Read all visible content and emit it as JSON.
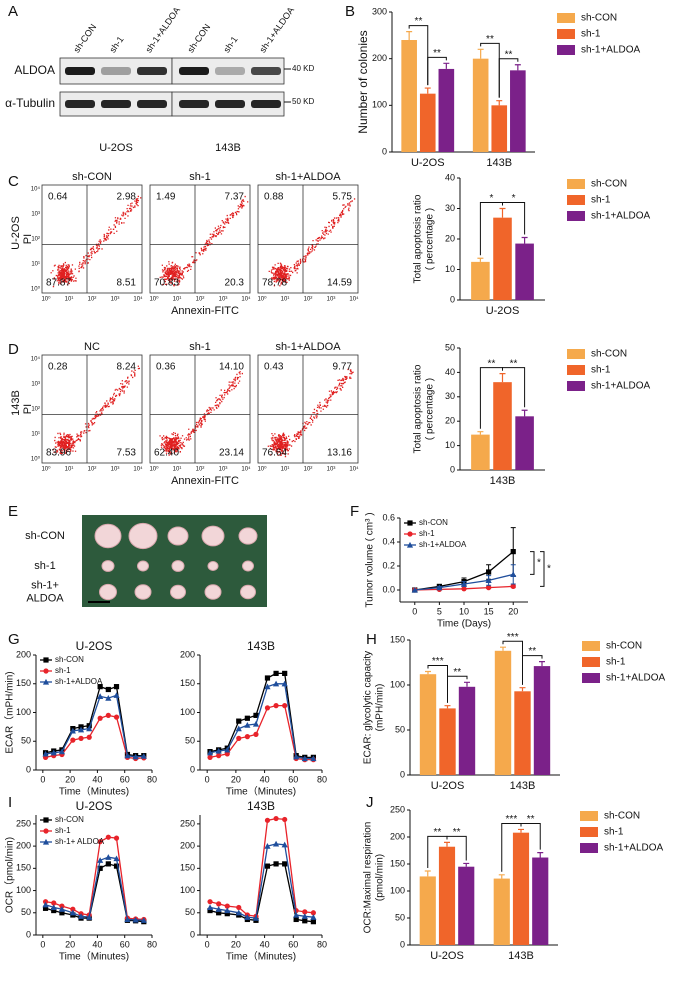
{
  "panel_labels": [
    "A",
    "B",
    "C",
    "D",
    "E",
    "F",
    "G",
    "H",
    "I",
    "J"
  ],
  "western_blot": {
    "lanes": [
      "sh-CON",
      "sh-1",
      "sh-1+ALDOA",
      "sh-CON",
      "sh-1",
      "sh-1+ALDOA"
    ],
    "proteins": [
      "ALDOA",
      "α-Tubulin"
    ],
    "markers": [
      "40 KD",
      "50 KD"
    ],
    "cell_lines": [
      "U-2OS",
      "143B"
    ]
  },
  "flow_cytometry": [
    {
      "cell_line": "U-2OS",
      "y_label": "PI",
      "x_label": "Annexin-FITC",
      "ticks": [
        "10⁰",
        "10¹",
        "10²",
        "10³",
        "10⁴"
      ],
      "plots": [
        {
          "title": "sh-CON",
          "quadrants": [
            "0.64",
            "2.98",
            "87.87",
            "8.51"
          ]
        },
        {
          "title": "sh-1",
          "quadrants": [
            "1.49",
            "7.37",
            "70.83",
            "20.3"
          ]
        },
        {
          "title": "sh-1+ALDOA",
          "quadrants": [
            "0.88",
            "5.75",
            "78.78",
            "14.59"
          ]
        }
      ]
    },
    {
      "cell_line": "143B",
      "y_label": "PI",
      "x_label": "Annexin-FITC",
      "ticks": [
        "10⁰",
        "10¹",
        "10²",
        "10³",
        "10⁴"
      ],
      "plots": [
        {
          "title": "NC",
          "quadrants": [
            "0.28",
            "8.24",
            "83.96",
            "7.53"
          ]
        },
        {
          "title": "sh-1",
          "quadrants": [
            "0.36",
            "14.10",
            "62.40",
            "23.14"
          ]
        },
        {
          "title": "sh-1+ALDOA",
          "quadrants": [
            "0.43",
            "9.77",
            "76.64",
            "13.16"
          ]
        }
      ]
    }
  ],
  "tumor_image": {
    "labels": [
      [
        "sh-CON"
      ],
      [
        "sh-1"
      ],
      [
        "sh-1+",
        "ALDOA"
      ]
    ]
  },
  "chart_data": [
    {
      "type": "bar",
      "ylabel": "Number of colonies",
      "categories": [
        "U-2OS",
        "143B"
      ],
      "ylim": [
        0,
        300
      ],
      "yticks": [
        0,
        100,
        200,
        300
      ],
      "legend": "right",
      "annotations": [
        "**",
        "**",
        "**",
        "**"
      ],
      "series": [
        {
          "name": "sh-CON",
          "color": "#f5a94c",
          "values": [
            240,
            200
          ],
          "errors": [
            18,
            20
          ]
        },
        {
          "name": "sh-1",
          "color": "#f0652a",
          "values": [
            125,
            100
          ],
          "errors": [
            12,
            10
          ]
        },
        {
          "name": "sh-1+ALDOA",
          "color": "#7b2189",
          "values": [
            178,
            175
          ],
          "errors": [
            12,
            12
          ]
        }
      ]
    },
    {
      "type": "bar",
      "ylabel": [
        "Total apoptosis ratio",
        "( percentage )"
      ],
      "categories": [
        "U-2OS"
      ],
      "ylim": [
        0,
        40
      ],
      "yticks": [
        0,
        10,
        20,
        30,
        40
      ],
      "legend": "right",
      "annotations": [
        "*",
        "*"
      ],
      "series": [
        {
          "name": "sh-CON",
          "color": "#f5a94c",
          "values": [
            12.5
          ],
          "errors": [
            1.2
          ]
        },
        {
          "name": "sh-1",
          "color": "#f0652a",
          "values": [
            27
          ],
          "errors": [
            3
          ]
        },
        {
          "name": "sh-1+ALDOA",
          "color": "#7b2189",
          "values": [
            18.5
          ],
          "errors": [
            2
          ]
        }
      ]
    },
    {
      "type": "bar",
      "ylabel": [
        "Total apoptosis ratio",
        "( percentage )"
      ],
      "categories": [
        "143B"
      ],
      "ylim": [
        0,
        50
      ],
      "yticks": [
        0,
        10,
        20,
        30,
        40,
        50
      ],
      "legend": "right",
      "annotations": [
        "**",
        "**"
      ],
      "series": [
        {
          "name": "sh-CON",
          "color": "#f5a94c",
          "values": [
            14.5
          ],
          "errors": [
            1.2
          ]
        },
        {
          "name": "sh-1",
          "color": "#f0652a",
          "values": [
            36
          ],
          "errors": [
            3.5
          ]
        },
        {
          "name": "sh-1+ALDOA",
          "color": "#7b2189",
          "values": [
            22
          ],
          "errors": [
            2.5
          ]
        }
      ]
    },
    {
      "type": "line",
      "ylabel": "Tumor volume ( cm³ )",
      "xlabel": "Time (Days)",
      "x": [
        0,
        5,
        10,
        15,
        20
      ],
      "xlim": [
        -3,
        23
      ],
      "xticks": [
        0,
        5,
        10,
        15,
        20
      ],
      "ylim": [
        -0.1,
        0.6
      ],
      "yticks": [
        {
          "value": 0,
          "label": "0.0"
        },
        {
          "value": 0.2,
          "label": "0.2"
        },
        {
          "value": 0.4,
          "label": "0.4"
        },
        {
          "value": 0.6,
          "label": "0.6"
        }
      ],
      "legend": "upper left",
      "annotations": [
        "*",
        "*"
      ],
      "series": [
        {
          "name": "sh-CON",
          "color": "#000000",
          "marker": "square",
          "values": [
            0,
            0.03,
            0.07,
            0.15,
            0.32
          ],
          "errors": [
            0,
            0.01,
            0.03,
            0.06,
            0.2
          ]
        },
        {
          "name": "sh-1",
          "color": "#e8232a",
          "marker": "circle",
          "values": [
            0,
            0.005,
            0.01,
            0.02,
            0.03
          ],
          "errors": [
            0,
            0.003,
            0.005,
            0.008,
            0.01
          ]
        },
        {
          "name": "sh-1+ALDOA",
          "color": "#1f4e9c",
          "marker": "triangle",
          "values": [
            0,
            0.02,
            0.05,
            0.08,
            0.13
          ],
          "errors": [
            0,
            0.01,
            0.02,
            0.04,
            0.08
          ]
        }
      ]
    },
    {
      "type": "line",
      "title": "U-2OS",
      "ylabel": "ECAR（mPH/min)",
      "xlabel": "Time（Minutes)",
      "x": [
        2,
        8,
        14,
        22,
        28,
        34,
        42,
        48,
        54,
        62,
        68,
        74
      ],
      "xlim": [
        -5,
        80
      ],
      "xticks": [
        0,
        20,
        40,
        60,
        80
      ],
      "ylim": [
        0,
        200
      ],
      "yticks": [
        0,
        50,
        100,
        150,
        200
      ],
      "legend": "upper left",
      "series": [
        {
          "name": "sh-CON",
          "color": "#000000",
          "marker": "square",
          "values": [
            30,
            33,
            35,
            72,
            75,
            77,
            145,
            140,
            145,
            27,
            25,
            25
          ]
        },
        {
          "name": "sh-1",
          "color": "#e8232a",
          "marker": "circle",
          "values": [
            22,
            25,
            27,
            52,
            55,
            57,
            90,
            95,
            92,
            22,
            20,
            21
          ]
        },
        {
          "name": "sh-1+ALDOA",
          "color": "#1f4e9c",
          "marker": "triangle",
          "values": [
            28,
            30,
            32,
            68,
            70,
            72,
            128,
            125,
            130,
            25,
            23,
            24
          ]
        }
      ]
    },
    {
      "type": "line",
      "title": "143B",
      "xlabel": "Time（Minutes)",
      "x": [
        2,
        8,
        14,
        22,
        28,
        34,
        42,
        48,
        54,
        62,
        68,
        74
      ],
      "xlim": [
        -5,
        80
      ],
      "xticks": [
        0,
        20,
        40,
        60,
        80
      ],
      "ylim": [
        0,
        200
      ],
      "yticks": [
        0,
        50,
        100,
        150,
        200
      ],
      "series": [
        {
          "color": "#000000",
          "marker": "square",
          "values": [
            32,
            35,
            38,
            85,
            90,
            95,
            160,
            168,
            168,
            25,
            22,
            22
          ]
        },
        {
          "color": "#e8232a",
          "marker": "circle",
          "values": [
            22,
            25,
            28,
            55,
            58,
            62,
            108,
            112,
            112,
            20,
            18,
            18
          ]
        },
        {
          "color": "#1f4e9c",
          "marker": "triangle",
          "values": [
            30,
            33,
            35,
            72,
            78,
            80,
            145,
            150,
            150,
            23,
            20,
            20
          ]
        }
      ]
    },
    {
      "type": "bar",
      "ylabel": [
        "ECAR: glycolytic capacity",
        "(mPH/min)"
      ],
      "categories": [
        "U-2OS",
        "143B"
      ],
      "ylim": [
        0,
        150
      ],
      "yticks": [
        0,
        50,
        100,
        150
      ],
      "legend": "right",
      "annotations": [
        "***",
        "**",
        "***",
        "**"
      ],
      "series": [
        {
          "name": "sh-CON",
          "color": "#f5a94c",
          "values": [
            112,
            138
          ],
          "errors": [
            3,
            4
          ]
        },
        {
          "name": "sh-1",
          "color": "#f0652a",
          "values": [
            74,
            93
          ],
          "errors": [
            3,
            4
          ]
        },
        {
          "name": "sh-1+ALDOA",
          "color": "#7b2189",
          "values": [
            98,
            121
          ],
          "errors": [
            5,
            5
          ]
        }
      ]
    },
    {
      "type": "line",
      "title": "U-2OS",
      "ylabel": "OCR（pmol/min)",
      "xlabel": "Time（Minutes)",
      "x": [
        2,
        8,
        14,
        22,
        28,
        34,
        42,
        48,
        54,
        62,
        68,
        74
      ],
      "xlim": [
        -5,
        80
      ],
      "xticks": [
        0,
        20,
        40,
        60,
        80
      ],
      "ylim": [
        0,
        270
      ],
      "yticks": [
        0,
        50,
        100,
        150,
        200,
        250
      ],
      "legend": "upper left",
      "series": [
        {
          "name": "sh-CON",
          "color": "#000000",
          "marker": "square",
          "values": [
            60,
            55,
            50,
            45,
            38,
            38,
            150,
            160,
            155,
            33,
            32,
            30
          ]
        },
        {
          "name": "sh-1",
          "color": "#e8232a",
          "marker": "circle",
          "values": [
            75,
            72,
            65,
            58,
            48,
            45,
            210,
            220,
            218,
            38,
            36,
            35
          ]
        },
        {
          "name": "sh-1+ ALDOA",
          "color": "#1f4e9c",
          "marker": "triangle",
          "values": [
            68,
            62,
            58,
            50,
            42,
            40,
            168,
            175,
            172,
            35,
            34,
            33
          ]
        }
      ]
    },
    {
      "type": "line",
      "title": "143B",
      "xlabel": "Time（Minutes)",
      "x": [
        2,
        8,
        14,
        22,
        28,
        34,
        42,
        48,
        54,
        62,
        68,
        74
      ],
      "xlim": [
        -5,
        80
      ],
      "xticks": [
        0,
        20,
        40,
        60,
        80
      ],
      "ylim": [
        0,
        270
      ],
      "yticks": [
        0,
        50,
        100,
        150,
        200,
        250
      ],
      "series": [
        {
          "color": "#000000",
          "marker": "square",
          "values": [
            55,
            50,
            48,
            45,
            35,
            33,
            155,
            160,
            160,
            35,
            32,
            30
          ]
        },
        {
          "color": "#e8232a",
          "marker": "circle",
          "values": [
            75,
            70,
            65,
            62,
            45,
            42,
            258,
            262,
            260,
            55,
            52,
            50
          ]
        },
        {
          "color": "#1f4e9c",
          "marker": "triangle",
          "values": [
            62,
            58,
            55,
            50,
            40,
            38,
            200,
            205,
            203,
            45,
            42,
            40
          ]
        }
      ]
    },
    {
      "type": "bar",
      "ylabel": [
        "OCR:Maximal respiration",
        "(pmol/min)"
      ],
      "categories": [
        "U-2OS",
        "143B"
      ],
      "ylim": [
        0,
        250
      ],
      "yticks": [
        0,
        50,
        100,
        150,
        200,
        250
      ],
      "legend": "right",
      "annotations": [
        "**",
        "**",
        "***",
        "**"
      ],
      "series": [
        {
          "name": "sh-CON",
          "color": "#f5a94c",
          "values": [
            127,
            123
          ],
          "errors": [
            10,
            7
          ]
        },
        {
          "name": "sh-1",
          "color": "#f0652a",
          "values": [
            182,
            208
          ],
          "errors": [
            8,
            6
          ]
        },
        {
          "name": "sh-1+ALDOA",
          "color": "#7b2189",
          "values": [
            145,
            162
          ],
          "errors": [
            6,
            9
          ]
        }
      ]
    }
  ]
}
